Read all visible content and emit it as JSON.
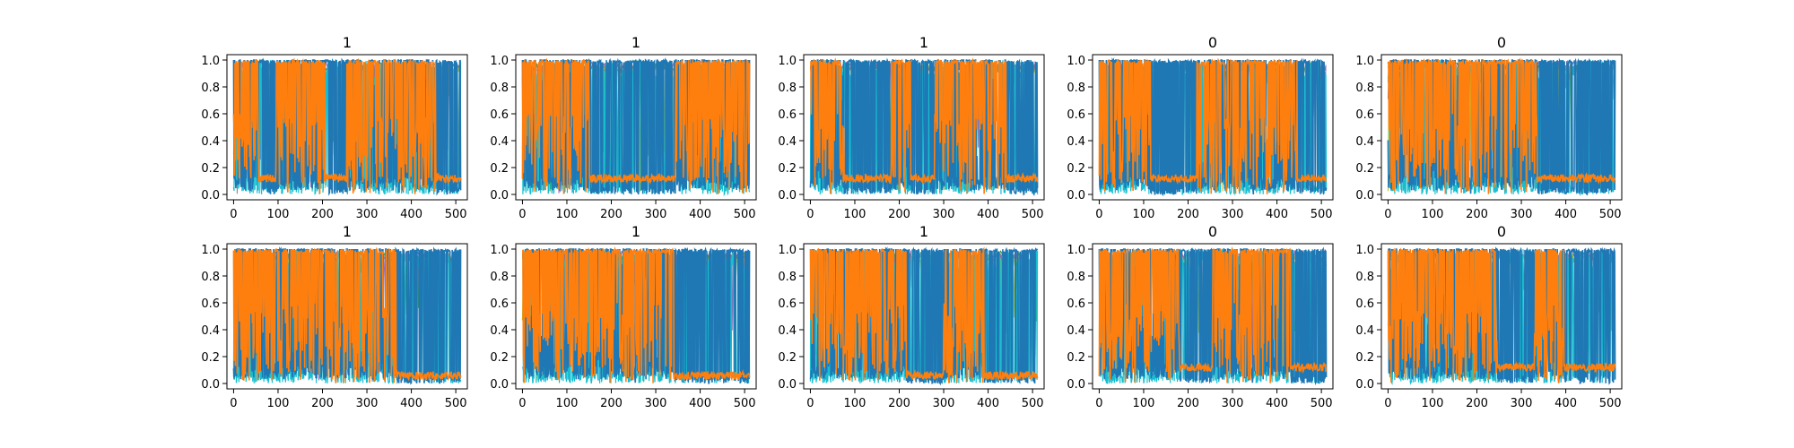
{
  "colors": {
    "blue": "#1f77b4",
    "orange": "#ff7f0e",
    "cyan": "#17becf",
    "green": "#2ca02c",
    "olive": "#bcbd22",
    "gray": "#7f7f7f",
    "purple": "#9467bd"
  },
  "chart_data": [
    {
      "type": "line",
      "title": "1",
      "xlim": [
        0,
        511
      ],
      "ylim": [
        0.0,
        1.0
      ],
      "xticks": [
        0,
        100,
        200,
        300,
        400,
        500
      ],
      "yticks": [
        "0.0",
        "0.2",
        "0.4",
        "0.6",
        "0.8",
        "1.0"
      ],
      "orange_regions": [
        [
          0,
          55
        ],
        [
          95,
          205
        ],
        [
          255,
          455
        ]
      ],
      "baseline": {
        "blue": 0.1,
        "orange": 0.12
      }
    },
    {
      "type": "line",
      "title": "1",
      "xlim": [
        0,
        511
      ],
      "ylim": [
        0.0,
        1.0
      ],
      "xticks": [
        0,
        100,
        200,
        300,
        400,
        500
      ],
      "yticks": [
        "0.0",
        "0.2",
        "0.4",
        "0.6",
        "0.8",
        "1.0"
      ],
      "orange_regions": [
        [
          0,
          150
        ],
        [
          345,
          511
        ]
      ],
      "baseline": {
        "blue": 0.1,
        "orange": 0.12
      }
    },
    {
      "type": "line",
      "title": "1",
      "xlim": [
        0,
        511
      ],
      "ylim": [
        0.0,
        1.0
      ],
      "xticks": [
        0,
        100,
        200,
        300,
        400,
        500
      ],
      "yticks": [
        "0.0",
        "0.2",
        "0.4",
        "0.6",
        "0.8",
        "1.0"
      ],
      "orange_regions": [
        [
          0,
          75
        ],
        [
          180,
          225
        ],
        [
          280,
          440
        ]
      ],
      "baseline": {
        "blue": 0.1,
        "orange": 0.12
      }
    },
    {
      "type": "line",
      "title": "0",
      "xlim": [
        0,
        511
      ],
      "ylim": [
        0.0,
        1.0
      ],
      "xticks": [
        0,
        100,
        200,
        300,
        400,
        500
      ],
      "yticks": [
        "0.0",
        "0.2",
        "0.4",
        "0.6",
        "0.8",
        "1.0"
      ],
      "orange_regions": [
        [
          0,
          115
        ],
        [
          220,
          445
        ]
      ],
      "baseline": {
        "blue": 0.1,
        "orange": 0.12
      }
    },
    {
      "type": "line",
      "title": "0",
      "xlim": [
        0,
        511
      ],
      "ylim": [
        0.0,
        1.0
      ],
      "xticks": [
        0,
        100,
        200,
        300,
        400,
        500
      ],
      "yticks": [
        "0.0",
        "0.2",
        "0.4",
        "0.6",
        "0.8",
        "1.0"
      ],
      "orange_regions": [
        [
          0,
          335
        ]
      ],
      "baseline": {
        "blue": 0.1,
        "orange": 0.12
      }
    },
    {
      "type": "line",
      "title": "1",
      "xlim": [
        0,
        511
      ],
      "ylim": [
        0.0,
        1.0
      ],
      "xticks": [
        0,
        100,
        200,
        300,
        400,
        500
      ],
      "yticks": [
        "0.0",
        "0.2",
        "0.4",
        "0.6",
        "0.8",
        "1.0"
      ],
      "orange_regions": [
        [
          0,
          365
        ]
      ],
      "baseline": {
        "blue": 0.1,
        "orange": 0.06
      }
    },
    {
      "type": "line",
      "title": "1",
      "xlim": [
        0,
        511
      ],
      "ylim": [
        0.0,
        1.0
      ],
      "xticks": [
        0,
        100,
        200,
        300,
        400,
        500
      ],
      "yticks": [
        "0.0",
        "0.2",
        "0.4",
        "0.6",
        "0.8",
        "1.0"
      ],
      "orange_regions": [
        [
          0,
          340
        ]
      ],
      "baseline": {
        "blue": 0.1,
        "orange": 0.06
      }
    },
    {
      "type": "line",
      "title": "1",
      "xlim": [
        0,
        511
      ],
      "ylim": [
        0.0,
        1.0
      ],
      "xticks": [
        0,
        100,
        200,
        300,
        400,
        500
      ],
      "yticks": [
        "0.0",
        "0.2",
        "0.4",
        "0.6",
        "0.8",
        "1.0"
      ],
      "orange_regions": [
        [
          0,
          215
        ],
        [
          300,
          390
        ]
      ],
      "baseline": {
        "blue": 0.1,
        "orange": 0.06
      }
    },
    {
      "type": "line",
      "title": "0",
      "xlim": [
        0,
        511
      ],
      "ylim": [
        0.0,
        1.0
      ],
      "xticks": [
        0,
        100,
        200,
        300,
        400,
        500
      ],
      "yticks": [
        "0.0",
        "0.2",
        "0.4",
        "0.6",
        "0.8",
        "1.0"
      ],
      "orange_regions": [
        [
          0,
          180
        ],
        [
          255,
          430
        ]
      ],
      "baseline": {
        "blue": 0.1,
        "orange": 0.12
      }
    },
    {
      "type": "line",
      "title": "0",
      "xlim": [
        0,
        511
      ],
      "ylim": [
        0.0,
        1.0
      ],
      "xticks": [
        0,
        100,
        200,
        300,
        400,
        500
      ],
      "yticks": [
        "0.0",
        "0.2",
        "0.4",
        "0.6",
        "0.8",
        "1.0"
      ],
      "orange_regions": [
        [
          0,
          245
        ],
        [
          330,
          395
        ]
      ],
      "baseline": {
        "blue": 0.1,
        "orange": 0.12
      }
    }
  ]
}
